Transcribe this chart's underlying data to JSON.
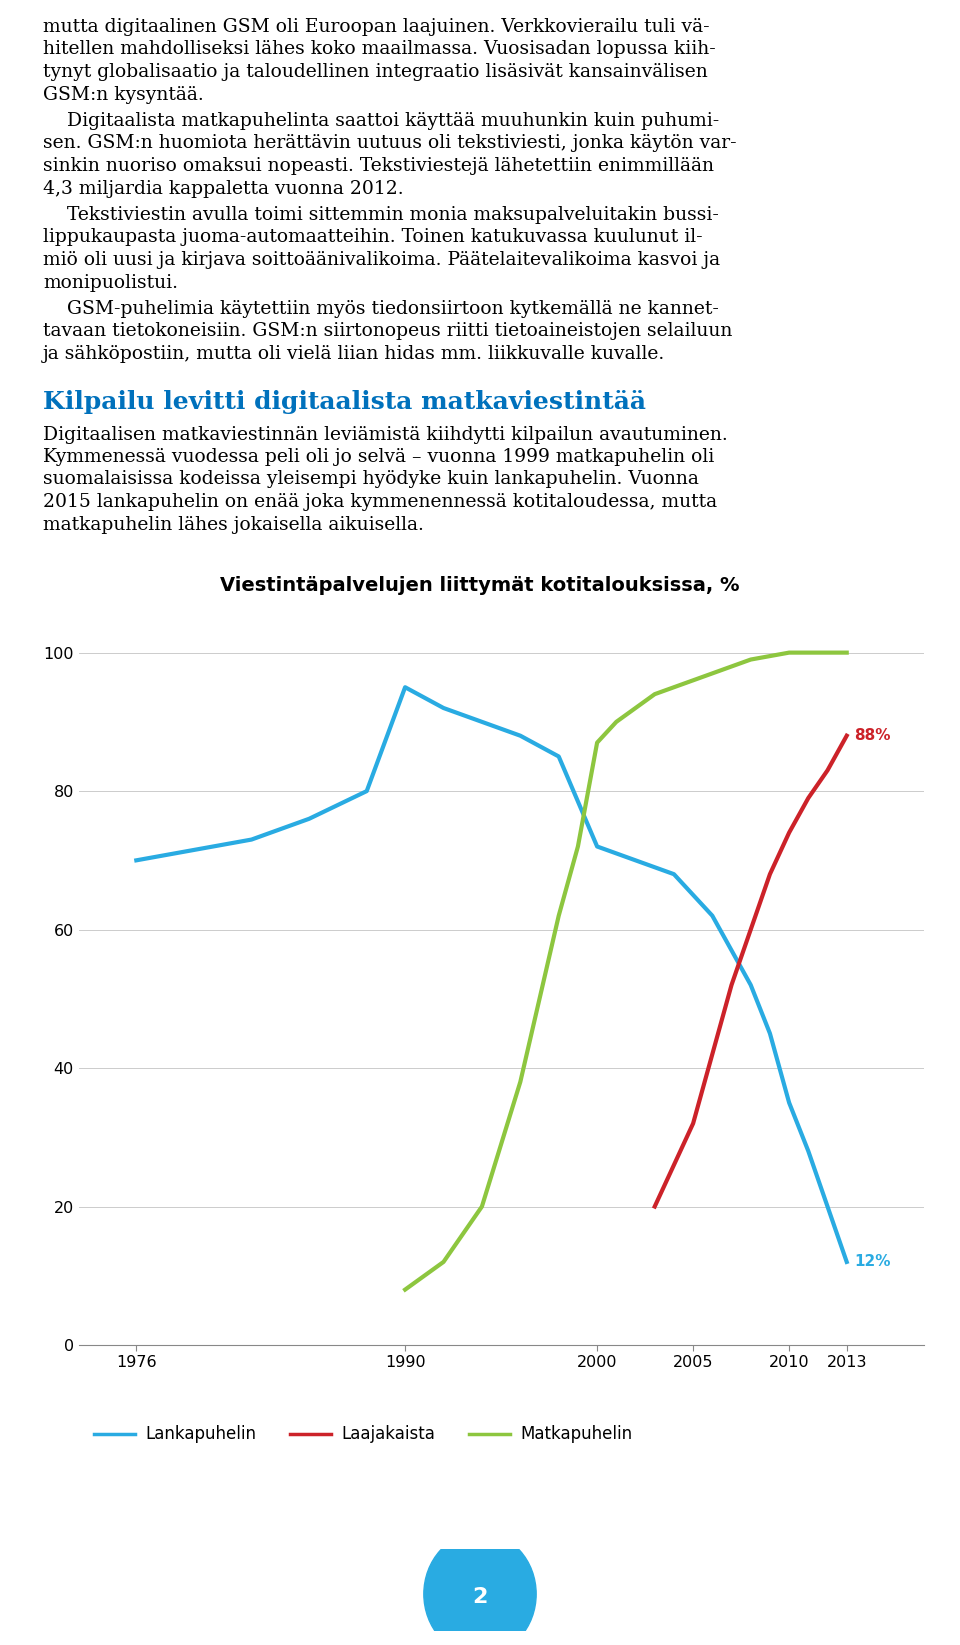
{
  "title": "Viestintäpalvelujen liittymät kotitalouksissa, %",
  "title_fontsize": 14,
  "title_fontweight": "bold",
  "ylim": [
    0,
    105
  ],
  "yticks": [
    0,
    20,
    40,
    60,
    80,
    100
  ],
  "xticks": [
    1976,
    1990,
    2000,
    2005,
    2010,
    2013
  ],
  "background_color": "#ffffff",
  "lankapuhelin": {
    "x": [
      1976,
      1982,
      1985,
      1988,
      1990,
      1992,
      1994,
      1996,
      1998,
      2000,
      2002,
      2004,
      2005,
      2006,
      2007,
      2008,
      2009,
      2010,
      2011,
      2012,
      2013
    ],
    "y": [
      70,
      73,
      76,
      80,
      95,
      92,
      90,
      88,
      85,
      72,
      70,
      68,
      65,
      62,
      57,
      52,
      45,
      35,
      28,
      20,
      12
    ],
    "color": "#29ABE2",
    "linewidth": 3.0,
    "label": "Lankapuhelin",
    "end_label": "12%"
  },
  "laajakaista": {
    "x": [
      2003,
      2004,
      2005,
      2006,
      2007,
      2008,
      2009,
      2010,
      2011,
      2012,
      2013
    ],
    "y": [
      20,
      26,
      32,
      42,
      52,
      60,
      68,
      74,
      79,
      83,
      88
    ],
    "color": "#CC2229",
    "linewidth": 3.0,
    "label": "Laajakaista",
    "end_label": "88%"
  },
  "matkapuhelin": {
    "x": [
      1990,
      1992,
      1994,
      1996,
      1998,
      1999,
      2000,
      2001,
      2002,
      2003,
      2004,
      2005,
      2006,
      2008,
      2010,
      2012,
      2013
    ],
    "y": [
      8,
      12,
      20,
      38,
      62,
      72,
      87,
      90,
      92,
      94,
      95,
      96,
      97,
      99,
      100,
      100,
      100
    ],
    "color": "#8DC63F",
    "linewidth": 3.0,
    "label": "Matkapuhelin",
    "end_label": null
  },
  "heading": "Kilpailu levitti digitaalista matkaviestintää",
  "heading_color": "#0071BC",
  "heading_fontsize": 18,
  "page_number": "2",
  "page_circle_color": "#29ABE2",
  "body_fontsize": 13.5,
  "body_color": "#000000",
  "para1_lines": [
    "mutta digitaalinen GSM oli Euroopan laajuinen. Verkkovierailu tuli vä-",
    "hitellen mahdolliseksi lähes koko maailmassa. Vuosisadan lopussa kiih-",
    "tynyt globalisaatio ja taloudellinen integraatio lisäsivät kansainvälisen",
    "GSM:n kysyntää."
  ],
  "para2_lines": [
    "    Digitaalista matkapuhelinta saattoi käyttää muuhunkin kuin puhumi-",
    "sen. GSM:n huomiota herättävin uutuus oli tekstiviesti, jonka käytön var-",
    "sinkin nuoriso omaksui nopeasti. Tekstiviestejä lähetettiin enimmillään",
    "4,3 miljardia kappaletta vuonna 2012."
  ],
  "para3_lines": [
    "    Tekstiviestin avulla toimi sittemmin monia maksupalveluitakin bussi-",
    "lippukaupasta juoma-automaatteihin. Toinen katukuvassa kuulunut il-",
    "miö oli uusi ja kirjava soittoäänivalikoima. Päätelaitevalikoima kasvoi ja",
    "monipuolistui."
  ],
  "para4_lines": [
    "    GSM-puhelimia käytettiin myös tiedonsiirtoon kytkemällä ne kannet-",
    "tavaan tietokoneisiin. GSM:n siirtonopeus riitti tietoaineistojen selailuun",
    "ja sähköpostiin, mutta oli vielä liian hidas mm. liikkuvalle kuvalle."
  ],
  "para5_lines": [
    "Digitaalisen matkaviestinnän leviämistä kiihdytti kilpailun avautuminen.",
    "Kymmenessä vuodessa peli oli jo selvä – vuonna 1999 matkapuhelin oli",
    "suomalaisissa kodeissa yleisempi hyödyke kuin lankapuhelin. Vuonna",
    "2015 lankapuhelin on enää joka kymmenennessä kotitaloudessa, mutta",
    "matkapuhelin lähes jokaisella aikuisella."
  ]
}
